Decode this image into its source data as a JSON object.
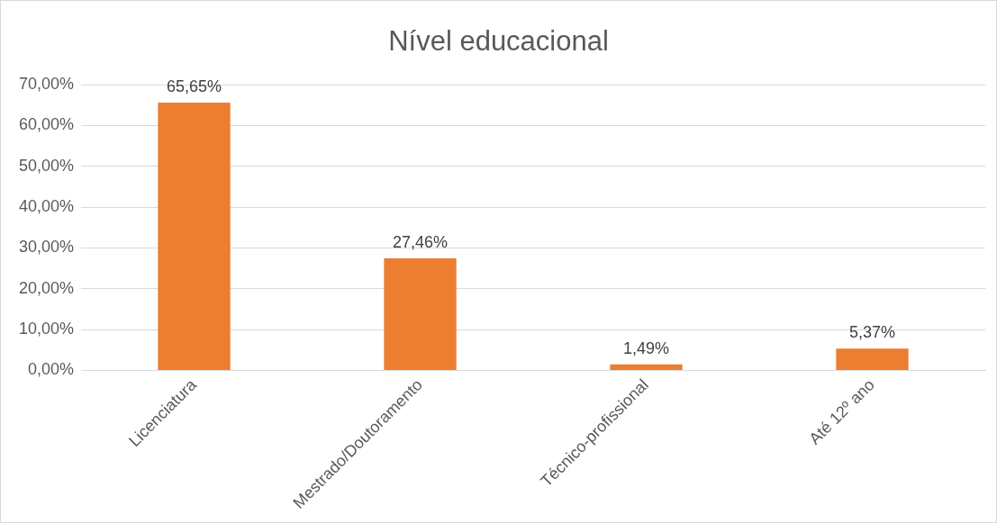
{
  "chart_data": {
    "type": "bar",
    "title": "Nível educacional",
    "categories": [
      "Licenciatura",
      "Mestrado/Doutoramento",
      "Técnico-profissional",
      "Até 12º ano"
    ],
    "values": [
      65.65,
      27.46,
      1.49,
      5.37
    ],
    "value_labels": [
      "65,65%",
      "27,46%",
      "1,49%",
      "5,37%"
    ],
    "color": "#ed7d31",
    "ylim": [
      0,
      70
    ],
    "yticks": [
      {
        "value": 0,
        "label": "0,00%"
      },
      {
        "value": 10,
        "label": "10,00%"
      },
      {
        "value": 20,
        "label": "20,00%"
      },
      {
        "value": 30,
        "label": "30,00%"
      },
      {
        "value": 40,
        "label": "40,00%"
      },
      {
        "value": 50,
        "label": "50,00%"
      },
      {
        "value": 60,
        "label": "60,00%"
      },
      {
        "value": 70,
        "label": "70,00%"
      }
    ],
    "grid": "y"
  }
}
